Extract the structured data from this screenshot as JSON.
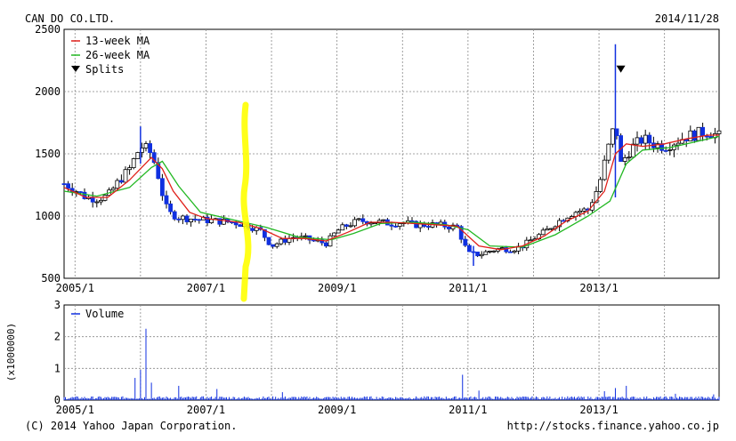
{
  "header": {
    "company": "CAN DO CO.LTD.",
    "date": "2014/11/28"
  },
  "footer": {
    "copyright": "(C) 2014 Yahoo Japan Corporation.",
    "url": "http://stocks.finance.yahoo.co.jp"
  },
  "colors": {
    "ma13": "#e0201a",
    "ma26": "#22b822",
    "up": "#ffffff",
    "down": "#1030e0",
    "volume": "#1030e0",
    "grid": "#888888",
    "highlight": "#ffff00"
  },
  "chart_data": [
    {
      "type": "candlestick",
      "title": "",
      "legend": [
        "13-week MA",
        "26-week MA",
        "Splits"
      ],
      "legend_placement": "top-left",
      "ylim": [
        500,
        2500
      ],
      "yticks": [
        500,
        1000,
        1500,
        2000,
        2500
      ],
      "xticks": [
        "2005/1",
        "2007/1",
        "2009/1",
        "2011/1",
        "2013/1"
      ],
      "x_range": [
        "2004-11",
        "2014-11"
      ],
      "grid": true,
      "series": {
        "close": [
          [
            "2004-11",
            1260
          ],
          [
            "2005-01",
            1210
          ],
          [
            "2005-03",
            1150
          ],
          [
            "2005-05",
            1140
          ],
          [
            "2005-07",
            1160
          ],
          [
            "2005-09",
            1280
          ],
          [
            "2005-11",
            1380
          ],
          [
            "2006-01",
            1560
          ],
          [
            "2006-02",
            1540
          ],
          [
            "2006-03",
            1500
          ],
          [
            "2006-04",
            1370
          ],
          [
            "2006-05",
            1180
          ],
          [
            "2006-06",
            1030
          ],
          [
            "2006-08",
            990
          ],
          [
            "2006-10",
            980
          ],
          [
            "2006-12",
            970
          ],
          [
            "2007-03",
            960
          ],
          [
            "2007-06",
            950
          ],
          [
            "2007-09",
            920
          ],
          [
            "2007-11",
            880
          ],
          [
            "2008-01",
            760
          ],
          [
            "2008-03",
            800
          ],
          [
            "2008-05",
            830
          ],
          [
            "2008-07",
            820
          ],
          [
            "2008-09",
            800
          ],
          [
            "2008-11",
            780
          ],
          [
            "2009-01",
            880
          ],
          [
            "2009-03",
            930
          ],
          [
            "2009-05",
            960
          ],
          [
            "2009-07",
            960
          ],
          [
            "2009-09",
            950
          ],
          [
            "2009-11",
            940
          ],
          [
            "2010-01",
            950
          ],
          [
            "2010-03",
            930
          ],
          [
            "2010-05",
            930
          ],
          [
            "2010-07",
            930
          ],
          [
            "2010-09",
            920
          ],
          [
            "2010-11",
            910
          ],
          [
            "2011-01",
            700
          ],
          [
            "2011-03",
            690
          ],
          [
            "2011-05",
            720
          ],
          [
            "2011-07",
            740
          ],
          [
            "2011-09",
            730
          ],
          [
            "2011-11",
            760
          ],
          [
            "2012-01",
            820
          ],
          [
            "2012-03",
            870
          ],
          [
            "2012-05",
            940
          ],
          [
            "2012-07",
            1000
          ],
          [
            "2012-09",
            1040
          ],
          [
            "2012-11",
            1050
          ],
          [
            "2013-01",
            1250
          ],
          [
            "2013-03",
            1600
          ],
          [
            "2013-04",
            1750
          ],
          [
            "2013-05",
            1420
          ],
          [
            "2013-07",
            1550
          ],
          [
            "2013-09",
            1620
          ],
          [
            "2013-11",
            1580
          ],
          [
            "2014-01",
            1560
          ],
          [
            "2014-03",
            1600
          ],
          [
            "2014-05",
            1640
          ],
          [
            "2014-07",
            1660
          ],
          [
            "2014-09",
            1680
          ],
          [
            "2014-11",
            1640
          ]
        ],
        "ma13": [
          [
            "2004-11",
            1230
          ],
          [
            "2005-03",
            1150
          ],
          [
            "2005-07",
            1150
          ],
          [
            "2005-11",
            1290
          ],
          [
            "2006-03",
            1470
          ],
          [
            "2006-05",
            1380
          ],
          [
            "2006-07",
            1200
          ],
          [
            "2006-10",
            1030
          ],
          [
            "2007-01",
            980
          ],
          [
            "2007-07",
            950
          ],
          [
            "2007-11",
            900
          ],
          [
            "2008-03",
            820
          ],
          [
            "2008-07",
            820
          ],
          [
            "2008-11",
            800
          ],
          [
            "2009-03",
            870
          ],
          [
            "2009-07",
            950
          ],
          [
            "2009-11",
            950
          ],
          [
            "2010-03",
            940
          ],
          [
            "2010-07",
            930
          ],
          [
            "2010-11",
            920
          ],
          [
            "2011-03",
            760
          ],
          [
            "2011-07",
            730
          ],
          [
            "2011-11",
            760
          ],
          [
            "2012-03",
            840
          ],
          [
            "2012-07",
            960
          ],
          [
            "2012-11",
            1040
          ],
          [
            "2013-02",
            1200
          ],
          [
            "2013-04",
            1500
          ],
          [
            "2013-06",
            1580
          ],
          [
            "2013-09",
            1560
          ],
          [
            "2014-01",
            1580
          ],
          [
            "2014-05",
            1620
          ],
          [
            "2014-09",
            1650
          ],
          [
            "2014-11",
            1650
          ]
        ],
        "ma26": [
          [
            "2004-11",
            1200
          ],
          [
            "2005-05",
            1160
          ],
          [
            "2005-11",
            1230
          ],
          [
            "2006-03",
            1390
          ],
          [
            "2006-05",
            1440
          ],
          [
            "2006-08",
            1240
          ],
          [
            "2006-12",
            1030
          ],
          [
            "2007-06",
            970
          ],
          [
            "2007-12",
            910
          ],
          [
            "2008-06",
            830
          ],
          [
            "2008-12",
            810
          ],
          [
            "2009-04",
            860
          ],
          [
            "2009-09",
            940
          ],
          [
            "2010-03",
            950
          ],
          [
            "2010-09",
            930
          ],
          [
            "2011-01",
            890
          ],
          [
            "2011-05",
            760
          ],
          [
            "2011-11",
            750
          ],
          [
            "2012-05",
            850
          ],
          [
            "2012-11",
            1000
          ],
          [
            "2013-03",
            1120
          ],
          [
            "2013-06",
            1420
          ],
          [
            "2013-09",
            1530
          ],
          [
            "2014-02",
            1550
          ],
          [
            "2014-07",
            1600
          ],
          [
            "2014-11",
            1640
          ]
        ],
        "spikes": [
          [
            "2013-04",
            1150,
            2380
          ],
          [
            "2006-01",
            1420,
            1720
          ],
          [
            "2011-02",
            600,
            760
          ]
        ]
      },
      "markers": [
        {
          "type": "split",
          "date": "2013-05",
          "value": 2180
        }
      ]
    },
    {
      "type": "bar",
      "title": "",
      "legend": [
        "Volume"
      ],
      "ylabel": "(x1000000)",
      "ylim": [
        0,
        3
      ],
      "yticks": [
        0,
        1,
        2,
        3
      ],
      "xticks": [
        "2005/1",
        "2007/1",
        "2009/1",
        "2011/1",
        "2013/1"
      ],
      "grid": true,
      "peaks": [
        [
          "2005-12",
          0.7
        ],
        [
          "2006-02",
          2.25
        ],
        [
          "2006-01",
          0.95
        ],
        [
          "2006-03",
          0.55
        ],
        [
          "2006-08",
          0.45
        ],
        [
          "2007-03",
          0.35
        ],
        [
          "2008-03",
          0.25
        ],
        [
          "2010-12",
          0.8
        ],
        [
          "2011-03",
          0.3
        ],
        [
          "2013-02",
          0.28
        ],
        [
          "2013-04",
          0.38
        ],
        [
          "2013-06",
          0.45
        ],
        [
          "2014-03",
          0.2
        ],
        [
          "2014-10",
          0.18
        ]
      ]
    }
  ]
}
